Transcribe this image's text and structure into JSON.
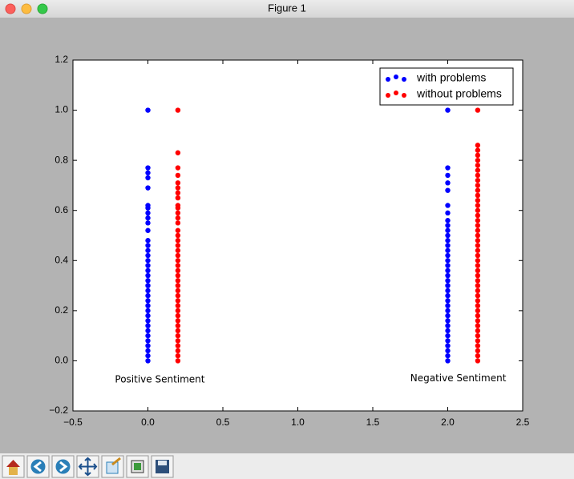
{
  "window_title": "Figure 1",
  "chart_data": {
    "type": "scatter",
    "xlim": [
      -0.5,
      2.5
    ],
    "ylim": [
      -0.2,
      1.2
    ],
    "xticks": [
      {
        "value": -0.5,
        "label": "−0.5"
      },
      {
        "value": 0,
        "label": "0.0"
      },
      {
        "value": 0.5,
        "label": "0.5"
      },
      {
        "value": 1,
        "label": "1.0"
      },
      {
        "value": 1.5,
        "label": "1.5"
      },
      {
        "value": 2,
        "label": "2.0"
      },
      {
        "value": 2.5,
        "label": "2.5"
      }
    ],
    "yticks": [
      {
        "value": -0.2,
        "label": "−0.2"
      },
      {
        "value": 0,
        "label": "0.0"
      },
      {
        "value": 0.2,
        "label": "0.2"
      },
      {
        "value": 0.4,
        "label": "0.4"
      },
      {
        "value": 0.6,
        "label": "0.6"
      },
      {
        "value": 0.8,
        "label": "0.8"
      },
      {
        "value": 1,
        "label": "1.0"
      },
      {
        "value": 1.2,
        "label": "1.2"
      }
    ],
    "legend": "upper right",
    "annotations": [
      {
        "text": "Positive Sentiment",
        "x": 0.08,
        "y": -0.075
      },
      {
        "text": "Negative Sentiment",
        "x": 2.07,
        "y": -0.07
      }
    ],
    "series": [
      {
        "name": "with problems",
        "color": "#0000ff",
        "x": [
          0,
          0,
          0,
          0,
          0,
          0,
          0,
          0,
          0,
          0,
          0,
          0,
          0,
          0,
          0,
          0,
          0,
          0,
          0,
          0,
          0,
          0,
          0,
          0,
          0,
          0,
          0,
          0,
          0,
          0,
          0,
          0,
          0,
          0,
          0,
          0,
          2,
          2,
          2,
          2,
          2,
          2,
          2,
          2,
          2,
          2,
          2,
          2,
          2,
          2,
          2,
          2,
          2,
          2,
          2,
          2,
          2,
          2,
          2,
          2,
          2,
          2,
          2,
          2,
          2,
          2,
          2,
          2,
          2,
          2,
          2,
          2
        ],
        "values": [
          0,
          0.02,
          0.04,
          0.06,
          0.08,
          0.1,
          0.12,
          0.14,
          0.16,
          0.18,
          0.2,
          0.22,
          0.24,
          0.26,
          0.28,
          0.3,
          0.32,
          0.34,
          0.36,
          0.38,
          0.4,
          0.42,
          0.44,
          0.46,
          0.48,
          0.52,
          0.55,
          0.57,
          0.59,
          0.61,
          0.62,
          0.69,
          0.73,
          0.75,
          0.77,
          1.0,
          0,
          0.02,
          0.04,
          0.06,
          0.08,
          0.1,
          0.12,
          0.14,
          0.16,
          0.18,
          0.2,
          0.22,
          0.24,
          0.26,
          0.28,
          0.3,
          0.32,
          0.34,
          0.36,
          0.38,
          0.4,
          0.42,
          0.44,
          0.46,
          0.48,
          0.5,
          0.52,
          0.54,
          0.56,
          0.59,
          0.62,
          0.68,
          0.71,
          0.74,
          0.77,
          1.0
        ]
      },
      {
        "name": "without problems",
        "color": "#ff0000",
        "x": [
          0.2,
          0.2,
          0.2,
          0.2,
          0.2,
          0.2,
          0.2,
          0.2,
          0.2,
          0.2,
          0.2,
          0.2,
          0.2,
          0.2,
          0.2,
          0.2,
          0.2,
          0.2,
          0.2,
          0.2,
          0.2,
          0.2,
          0.2,
          0.2,
          0.2,
          0.2,
          0.2,
          0.2,
          0.2,
          0.2,
          0.2,
          0.2,
          0.2,
          0.2,
          0.2,
          0.2,
          0.2,
          0.2,
          0.2,
          0.2,
          2.2,
          2.2,
          2.2,
          2.2,
          2.2,
          2.2,
          2.2,
          2.2,
          2.2,
          2.2,
          2.2,
          2.2,
          2.2,
          2.2,
          2.2,
          2.2,
          2.2,
          2.2,
          2.2,
          2.2,
          2.2,
          2.2,
          2.2,
          2.2,
          2.2,
          2.2,
          2.2,
          2.2,
          2.2,
          2.2,
          2.2,
          2.2,
          2.2,
          2.2,
          2.2,
          2.2,
          2.2,
          2.2,
          2.2,
          2.2,
          2.2,
          2.2,
          2.2,
          2.2,
          2.2
        ],
        "values": [
          0,
          0.02,
          0.04,
          0.06,
          0.08,
          0.1,
          0.12,
          0.14,
          0.16,
          0.18,
          0.2,
          0.22,
          0.24,
          0.26,
          0.28,
          0.3,
          0.32,
          0.34,
          0.36,
          0.38,
          0.4,
          0.42,
          0.44,
          0.46,
          0.48,
          0.5,
          0.52,
          0.55,
          0.57,
          0.59,
          0.61,
          0.62,
          0.65,
          0.67,
          0.69,
          0.71,
          0.74,
          0.77,
          0.83,
          1.0,
          0,
          0.02,
          0.04,
          0.06,
          0.08,
          0.1,
          0.12,
          0.14,
          0.16,
          0.18,
          0.2,
          0.22,
          0.24,
          0.26,
          0.28,
          0.3,
          0.32,
          0.34,
          0.36,
          0.38,
          0.4,
          0.42,
          0.44,
          0.46,
          0.48,
          0.5,
          0.52,
          0.54,
          0.56,
          0.58,
          0.6,
          0.62,
          0.64,
          0.66,
          0.68,
          0.7,
          0.72,
          0.74,
          0.76,
          0.78,
          0.8,
          0.82,
          0.84,
          0.86,
          1.0
        ]
      }
    ]
  }
}
